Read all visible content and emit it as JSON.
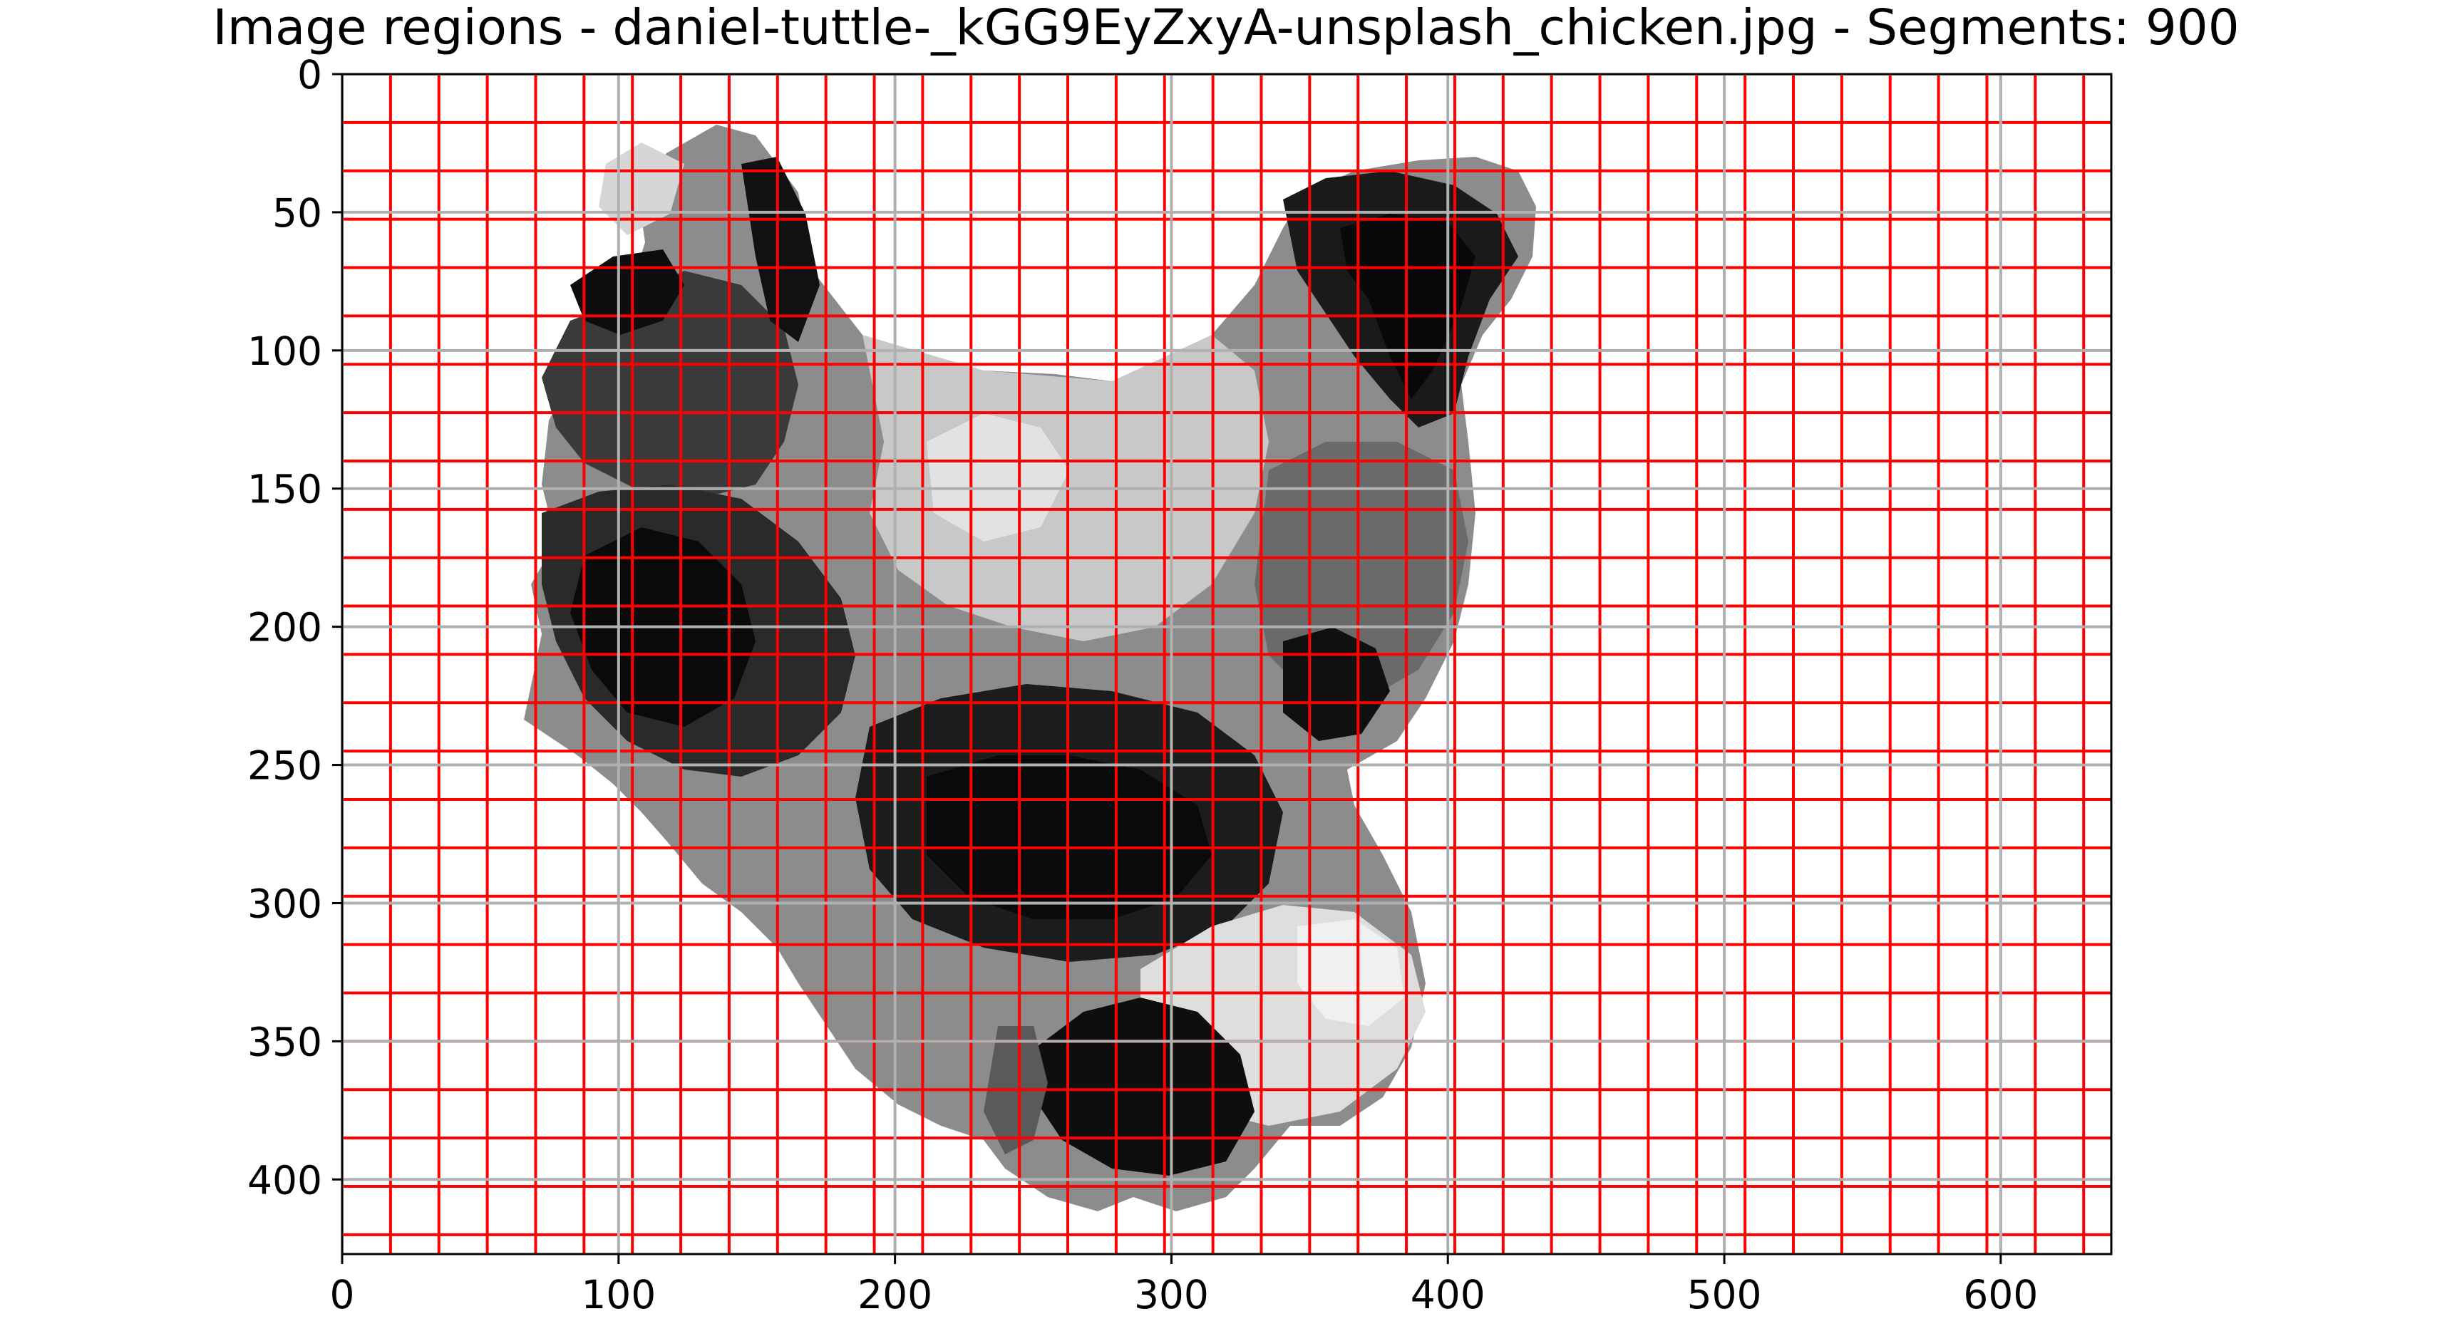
{
  "chart_data": {
    "type": "heatmap",
    "title": "Image regions - daniel-tuttle-_kGG9EyZxyA-unsplash_chicken.jpg - Segments: 900",
    "xlabel": "",
    "ylabel": "",
    "xlim": [
      0,
      640
    ],
    "ylim": [
      427,
      0
    ],
    "x_ticks": [
      0,
      100,
      200,
      300,
      400,
      500,
      600
    ],
    "y_ticks": [
      0,
      50,
      100,
      150,
      200,
      250,
      300,
      350,
      400
    ],
    "x_tick_labels": [
      "0",
      "100",
      "200",
      "300",
      "400",
      "500",
      "600"
    ],
    "y_tick_labels": [
      "0",
      "50",
      "100",
      "150",
      "200",
      "250",
      "300",
      "350",
      "400"
    ],
    "grid": true,
    "colormap": "gray",
    "boundary_color": "#ff0000",
    "grid_color": "#b0b0b0",
    "segments": 900
  }
}
